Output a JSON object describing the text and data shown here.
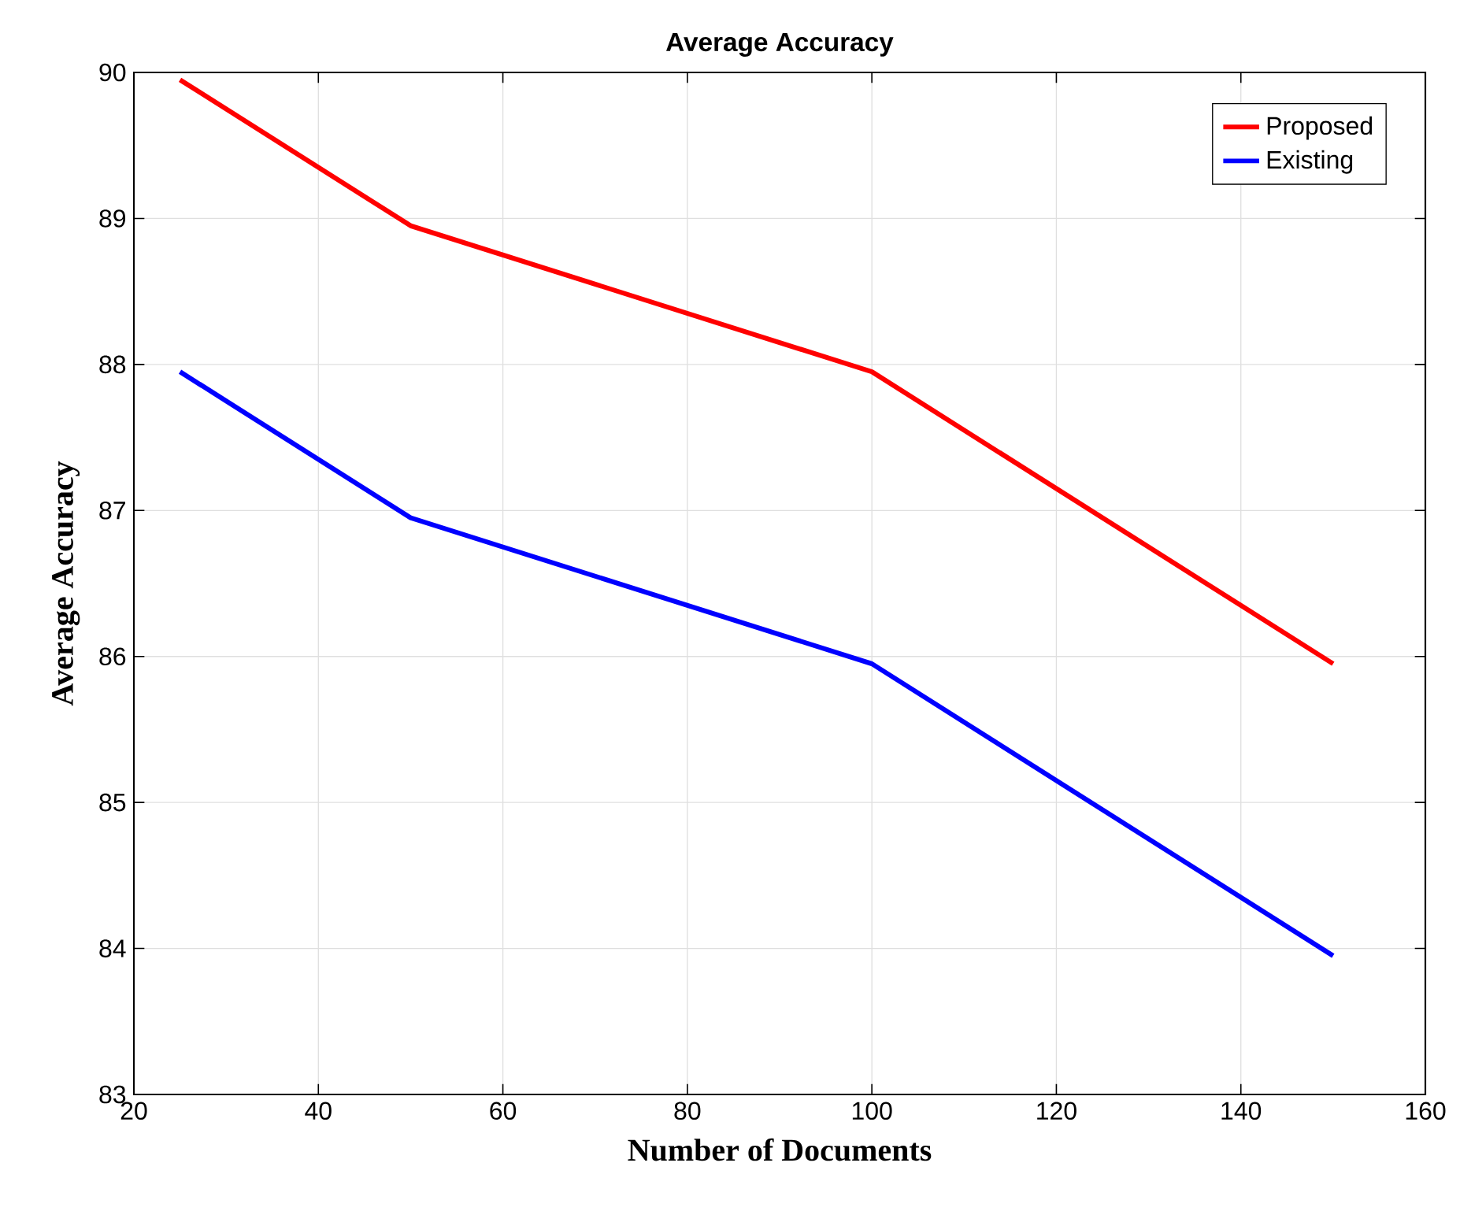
{
  "chart_data": {
    "type": "line",
    "title": "Average Accuracy",
    "xlabel": "Number of Documents",
    "ylabel": "Average Accuracy",
    "series": [
      {
        "name": "Proposed",
        "color": "#ff0000",
        "x": [
          25,
          50,
          100,
          150
        ],
        "values": [
          89.95,
          88.95,
          87.95,
          85.95
        ]
      },
      {
        "name": "Existing",
        "color": "#0000ff",
        "x": [
          25,
          50,
          100,
          150
        ],
        "values": [
          87.95,
          86.95,
          85.95,
          83.95
        ]
      }
    ],
    "xlim": [
      20,
      160
    ],
    "xticks": [
      20,
      40,
      60,
      80,
      100,
      120,
      140,
      160
    ],
    "ylim": [
      83,
      90
    ],
    "yticks": [
      83,
      84,
      85,
      86,
      87,
      88,
      89,
      90
    ],
    "grid": true,
    "legend": "top right",
    "marker": "none",
    "line_style": "solid"
  }
}
